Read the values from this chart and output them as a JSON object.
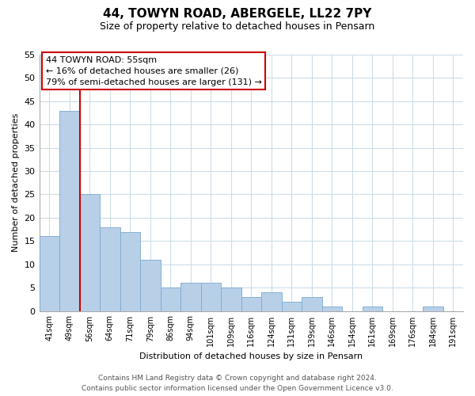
{
  "title": "44, TOWYN ROAD, ABERGELE, LL22 7PY",
  "subtitle": "Size of property relative to detached houses in Pensarn",
  "xlabel": "Distribution of detached houses by size in Pensarn",
  "ylabel": "Number of detached properties",
  "bar_labels": [
    "41sqm",
    "49sqm",
    "56sqm",
    "64sqm",
    "71sqm",
    "79sqm",
    "86sqm",
    "94sqm",
    "101sqm",
    "109sqm",
    "116sqm",
    "124sqm",
    "131sqm",
    "139sqm",
    "146sqm",
    "154sqm",
    "161sqm",
    "169sqm",
    "176sqm",
    "184sqm",
    "191sqm"
  ],
  "bar_values": [
    16,
    43,
    25,
    18,
    17,
    11,
    5,
    6,
    6,
    5,
    3,
    4,
    2,
    3,
    1,
    0,
    1,
    0,
    0,
    1,
    0
  ],
  "bar_color": "#b8cfe8",
  "bar_edge_color": "#7aaad0",
  "vline_x_after_bar": 1,
  "vline_color": "#cc0000",
  "annotation_title": "44 TOWYN ROAD: 55sqm",
  "annotation_line1": "← 16% of detached houses are smaller (26)",
  "annotation_line2": "79% of semi-detached houses are larger (131) →",
  "annotation_box_color": "#ffffff",
  "annotation_box_edge": "#cc0000",
  "ylim": [
    0,
    55
  ],
  "yticks": [
    0,
    5,
    10,
    15,
    20,
    25,
    30,
    35,
    40,
    45,
    50,
    55
  ],
  "footer_line1": "Contains HM Land Registry data © Crown copyright and database right 2024.",
  "footer_line2": "Contains public sector information licensed under the Open Government Licence v3.0.",
  "bg_color": "#ffffff",
  "grid_color": "#ccdde8",
  "title_fontsize": 11,
  "subtitle_fontsize": 9,
  "ylabel_fontsize": 8,
  "xlabel_fontsize": 8,
  "tick_fontsize": 7,
  "annotation_fontsize": 8,
  "footer_fontsize": 6.5
}
